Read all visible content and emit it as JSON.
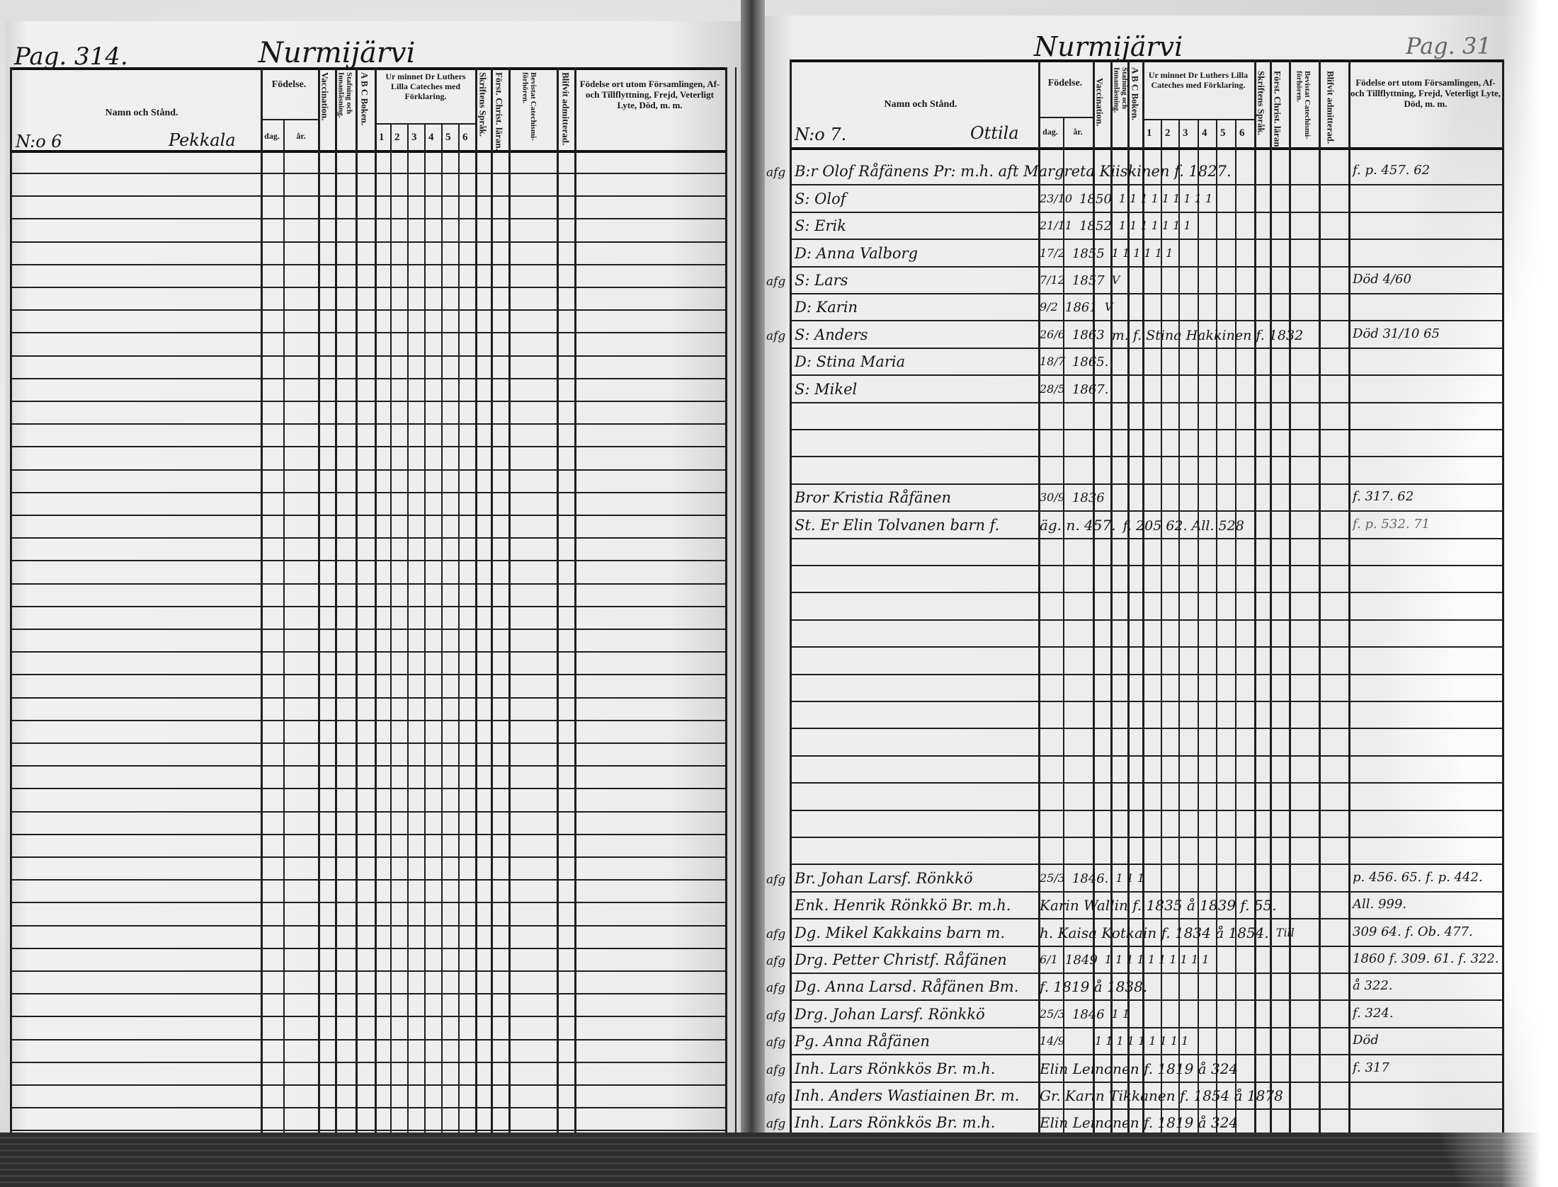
{
  "left_page": {
    "page_number": "Pag. 314.",
    "parish": "Nurmijärvi",
    "household_number": "N:o 6",
    "farm_name": "Pekkala",
    "headers": {
      "name": "Namn och Stånd.",
      "birth": "Födelse.",
      "day": "dag.",
      "year": "år.",
      "vaccination": "Vaccination.",
      "spelling": "Stafning och Innanläsning.",
      "abc": "A B C Boken.",
      "catechism": "Ur minnet Dr Luthers Lilla Cateches med Förklaring.",
      "catechism_cols": [
        "1",
        "2",
        "3",
        "4",
        "5",
        "6"
      ],
      "scripture": "Skriftens Språk.",
      "christian": "Först. Christ. läran.",
      "attended": "Bevistat Catechismi-förhören.",
      "admitted": "Blifvit admitterad.",
      "remarks": "Födelse ort utom Församlingen, Af- och Tillflyttning, Frejd, Veterligt Lyte, Död, m. m."
    }
  },
  "right_page": {
    "page_number": "Pag. 31",
    "parish": "Nurmijärvi",
    "household_number": "N:o 7.",
    "farm_name": "Ottila",
    "headers": {
      "name": "Namn och Stånd.",
      "birth": "Födelse.",
      "day": "dag.",
      "year": "år.",
      "vaccination": "Vaccination.",
      "spelling": "Stafning och Innanläsning.",
      "abc": "A B C Boken.",
      "catechism": "Ur minnet Dr Luthers Lilla Cateches med Förklaring.",
      "catechism_cols": [
        "1",
        "2",
        "3",
        "4",
        "5",
        "6"
      ],
      "scripture": "Skriftens Språk.",
      "christian": "Först. Christ. läran.",
      "attended": "Bevistat Catechismi-förhören.",
      "admitted": "Blifvit admitterad.",
      "remarks": "Födelse ort utom Församlingen, Af- och Tillflyttning, Frejd, Veterligt Lyte, Död, m. m."
    },
    "entries": [
      {
        "margin": "afg",
        "name": "B:r Olof Råfänens Pr: m.h. aft Margreta Kiiskinen f. 1827.",
        "day": "",
        "year": "",
        "marks": "",
        "remark": "f. p. 457. 62"
      },
      {
        "margin": "",
        "name": "S: Olof",
        "day": "23/10",
        "year": "1850",
        "marks": "1 1  1 1 1 1 1 1 1",
        "remark": ""
      },
      {
        "margin": "",
        "name": "S: Erik",
        "day": "21/11",
        "year": "1852",
        "marks": "1 1  1 1 1 1 1",
        "remark": ""
      },
      {
        "margin": "",
        "name": "D: Anna Valborg",
        "day": "17/2",
        "year": "1855",
        "marks": "1 1  1 1 1 1",
        "remark": ""
      },
      {
        "margin": "afg",
        "name": "S: Lars",
        "day": "7/12",
        "year": "1857",
        "marks": "V",
        "remark": "Död 4/60"
      },
      {
        "margin": "",
        "name": "D: Karin",
        "day": "9/2",
        "year": "1861",
        "marks": "V",
        "remark": ""
      },
      {
        "margin": "afg",
        "name": "S: Anders",
        "day": "26/6",
        "year": "1863",
        "marks": "m. f. Stina Hakkinen f. 1832",
        "remark": "Död 31/10 65"
      },
      {
        "margin": "",
        "name": "D: Stina Maria",
        "day": "18/7",
        "year": "1865.",
        "marks": "",
        "remark": ""
      },
      {
        "margin": "",
        "name": "S: Mikel",
        "day": "28/5",
        "year": "1867.",
        "marks": "",
        "remark": ""
      },
      {
        "margin": "",
        "name": "Bror Kristia Råfänen",
        "day": "30/9",
        "year": "1836",
        "marks": "",
        "remark": "f. 317. 62"
      },
      {
        "margin": "",
        "name": "St. Er Elin Tolvanen barn f.",
        "day": "äg. n. 457.",
        "year": "",
        "marks": "f. 205 62. All. 528",
        "remark": "f. p. 532. 71"
      },
      {
        "margin": "afg",
        "name": "Br. Johan Larsf. Rönkkö",
        "day": "25/3",
        "year": "1846.",
        "marks": "1 1 1",
        "remark": "p. 456. 65. f. p. 442."
      },
      {
        "margin": "",
        "name": "Enk. Henrik Rönkkö Br. m.h.",
        "day": "Karin Wallin f. 1835 å 1839 f. 55.",
        "year": "",
        "marks": "",
        "remark": "All. 999."
      },
      {
        "margin": "afg",
        "name": "Dg. Mikel Kakkains barn m.",
        "day": "h. Kaisa Kotkain f. 1834 å 1854.",
        "year": "",
        "marks": "Till",
        "remark": "309 64.  f. Ob. 477."
      },
      {
        "margin": "afg",
        "name": "Drg. Petter Christf. Råfänen",
        "day": "6/1",
        "year": "1849",
        "marks": "1 1 1 1 1 1 1 1 1 1",
        "remark": "1860 f. 309. 61. f. 322."
      },
      {
        "margin": "afg",
        "name": "Dg. Anna Larsd. Råfänen Bm.",
        "day": "f. 1819 å 1838.",
        "year": "",
        "marks": "",
        "remark": "å 322."
      },
      {
        "margin": "afg",
        "name": "Drg. Johan Larsf. Rönkkö",
        "day": "25/3",
        "year": "1846",
        "marks": "1 1",
        "remark": "f. 324."
      },
      {
        "margin": "afg",
        "name": "Pg. Anna Råfänen",
        "day": "14/9",
        "year": "",
        "marks": "1 1 1 1 1 1 1 1 1",
        "remark": "Död"
      },
      {
        "margin": "afg",
        "name": "Inh. Lars Rönkkös Br. m.h.",
        "day": "Elin Leinonen f. 1819 å 324",
        "year": "",
        "marks": "",
        "remark": "f. 317"
      },
      {
        "margin": "afg",
        "name": "Inh. Anders Wastiainen Br. m.",
        "day": "Gr. Karin Tikkanen f. 1854 å 1878",
        "year": "",
        "marks": "",
        "remark": ""
      },
      {
        "margin": "afg",
        "name": "Inh. Lars Rönkkös Br. m.h.",
        "day": "Elin Leinonen f. 1819 å 324",
        "year": "",
        "marks": "",
        "remark": ""
      }
    ]
  }
}
